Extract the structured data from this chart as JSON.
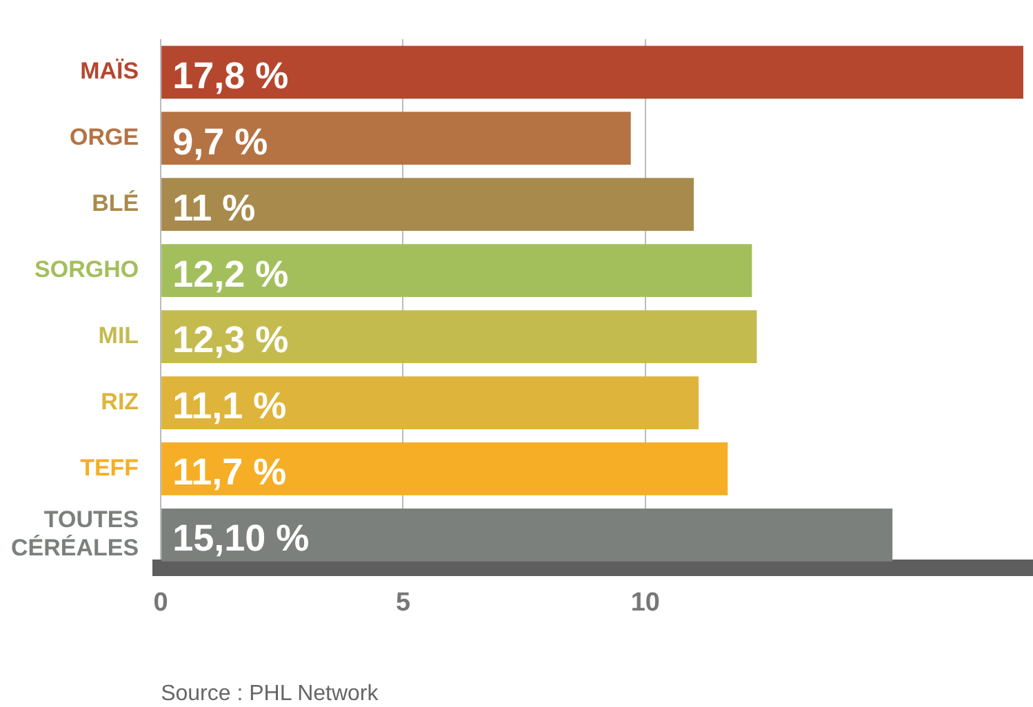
{
  "chart_data": {
    "type": "bar",
    "orientation": "horizontal",
    "categories": [
      "MAÏS",
      "ORGE",
      "BLÉ",
      "SORGHO",
      "MIL",
      "RIZ",
      "TEFF",
      "TOUTES CÉRÉALES"
    ],
    "values": [
      17.8,
      9.7,
      11,
      12.2,
      12.3,
      11.1,
      11.7,
      15.1
    ],
    "colors": [
      "#b5472f",
      "#b57343",
      "#a88a4c",
      "#a3bf5c",
      "#c4bb4f",
      "#dfb43a",
      "#f5ae25",
      "#7b807c"
    ],
    "value_labels": [
      "17,8 %",
      "9,7 %",
      "11 %",
      "12,2 %",
      "12,3 %",
      "11,1 %",
      "11,7 %",
      "15,10 %"
    ],
    "xlim": [
      0,
      18
    ],
    "xticks": [
      0,
      5,
      10
    ],
    "grid": "x",
    "legend": false,
    "annotations": [
      "Source : PHL Network"
    ]
  }
}
